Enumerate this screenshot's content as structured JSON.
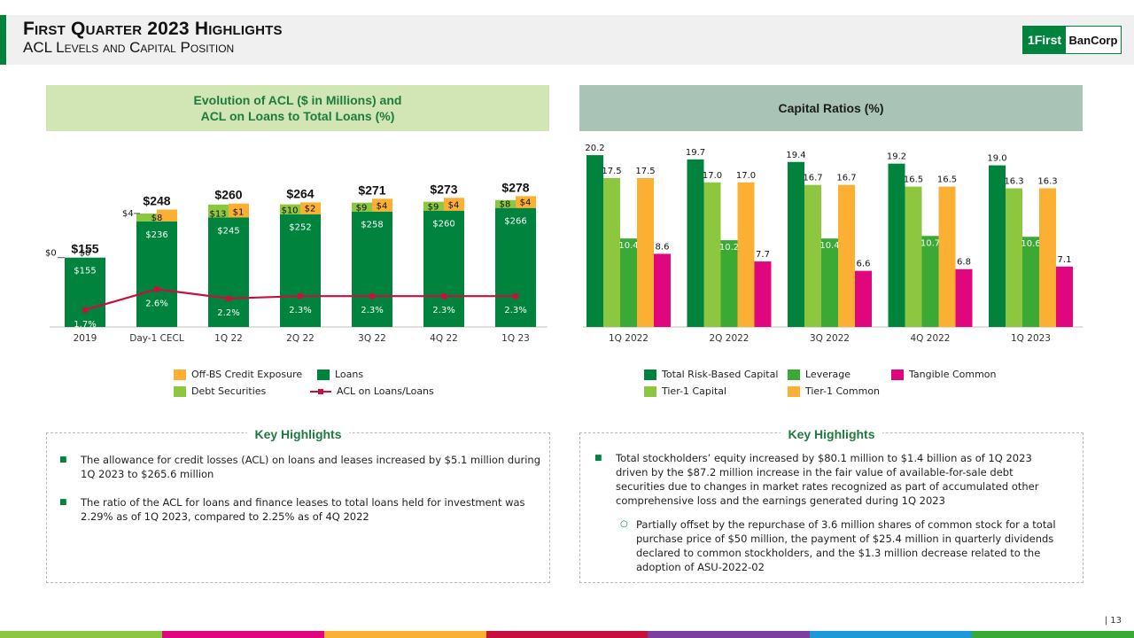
{
  "header": {
    "title": "First Quarter 2023 Highlights",
    "subtitle": "ACL Levels and Capital Position"
  },
  "logo": {
    "left_text": "1First",
    "right_text": "BanCorp"
  },
  "panel_left": {
    "title_line1": "Evolution of ACL ($ in Millions) and",
    "title_line2": "ACL on Loans to Total Loans (%)"
  },
  "panel_right": {
    "title": "Capital Ratios (%)"
  },
  "chart_data": [
    {
      "type": "bar",
      "stacked": true,
      "categories": [
        "2019",
        "Day-1 CECL",
        "1Q 22",
        "2Q 22",
        "3Q 22",
        "4Q 22",
        "1Q 23"
      ],
      "totals": [
        "$155",
        "$248",
        "$260",
        "$264",
        "$271",
        "$273",
        "$278"
      ],
      "series": [
        {
          "name": "Loans",
          "color": "#00843d",
          "values": [
            155,
            236,
            245,
            252,
            258,
            260,
            266
          ],
          "labels": [
            "$155",
            "$236",
            "$245",
            "$252",
            "$258",
            "$260",
            "$266"
          ]
        },
        {
          "name": "Debt Securities",
          "color": "#8dc63f",
          "values": [
            0,
            8,
            13,
            10,
            9,
            9,
            8
          ],
          "labels": [
            "$0",
            "$8",
            "$13",
            "$10",
            "$9",
            "$9",
            "$8"
          ]
        },
        {
          "name": "Off-BS Credit Exposure",
          "color": "#fbb034",
          "values": [
            0,
            4,
            1,
            2,
            4,
            4,
            4
          ],
          "labels": [
            "$0",
            "$4",
            "$1",
            "$2",
            "$4",
            "$4",
            "$4"
          ]
        }
      ],
      "line": {
        "name": "ACL on Loans/Loans",
        "color": "#c8103e",
        "values": [
          1.7,
          2.6,
          2.2,
          2.3,
          2.3,
          2.3,
          2.3
        ],
        "labels": [
          "1.7%",
          "2.6%",
          "2.2%",
          "2.3%",
          "2.3%",
          "2.3%",
          "2.3%"
        ]
      },
      "legend": [
        "Off-BS Credit Exposure",
        "Loans",
        "Debt Securities",
        "ACL on Loans/Loans"
      ]
    },
    {
      "type": "bar",
      "categories": [
        "1Q 2022",
        "2Q 2022",
        "3Q 2022",
        "4Q 2022",
        "1Q 2023"
      ],
      "ylim": [
        0,
        22
      ],
      "series": [
        {
          "name": "Total Risk-Based Capital",
          "color": "#00843d",
          "values": [
            20.2,
            19.7,
            19.4,
            19.2,
            19.0
          ]
        },
        {
          "name": "Tier-1 Capital",
          "color": "#8dc63f",
          "values": [
            17.5,
            17.0,
            16.7,
            16.5,
            16.3
          ]
        },
        {
          "name": "Leverage",
          "color": "#3aaa35",
          "values": [
            10.4,
            10.2,
            10.4,
            10.7,
            10.6
          ]
        },
        {
          "name": "Tier-1 Common",
          "color": "#fbb034",
          "values": [
            17.5,
            17.0,
            16.7,
            16.5,
            16.3
          ]
        },
        {
          "name": "Tangible Common",
          "color": "#e0067d",
          "values": [
            8.6,
            7.7,
            6.6,
            6.8,
            7.1
          ]
        }
      ]
    }
  ],
  "key_left": {
    "title": "Key Highlights",
    "bullets": [
      "The allowance  for credit losses (ACL) on loans and leases increased by $5.1 million during 1Q 2023 to $265.6 million",
      "The ratio of the ACL for loans and finance leases to total loans held for investment was 2.29% as of 1Q 2023, compared  to 2.25% as of 4Q 2022"
    ]
  },
  "key_right": {
    "title": "Key Highlights",
    "bullet": "Total stockholders’ equity increased by $80.1 million to $1.4 billion as of 1Q 2023 driven by the $87.2 million  increase in the fair value of available-for-sale  debt securities due  to changes  in market rates recognized  as part of accumulated  other comprehensive loss and the earnings generated  during 1Q 2023",
    "sub_bullet": "Partially  offset by the repurchase  of 3.6 million shares of common stock for a total purchase price of $50 million,  the payment of $25.4 million  in quarterly dividends declared  to common stockholders,  and the $1.3 million  decrease related  to the adoption of ASU-2022-02"
  },
  "page_number": "| 13",
  "footer_colors": [
    "#8dc63f",
    "#e0067d",
    "#fbb034",
    "#c8103e",
    "#7b3fa0",
    "#1d9ad6",
    "#3aaa35"
  ]
}
